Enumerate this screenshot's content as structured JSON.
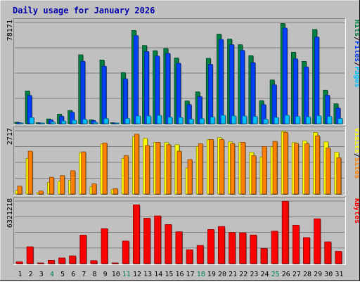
{
  "chart_data": {
    "type": "bar",
    "title": "Daily usage for January 2026",
    "x": [
      "1",
      "2",
      "3",
      "4",
      "5",
      "6",
      "7",
      "8",
      "9",
      "10",
      "11",
      "12",
      "13",
      "14",
      "15",
      "16",
      "17",
      "18",
      "19",
      "20",
      "21",
      "22",
      "23",
      "24",
      "25",
      "26",
      "27",
      "28",
      "29",
      "30",
      "31"
    ],
    "weekend_days": [
      "4",
      "11",
      "18",
      "25"
    ],
    "panels": [
      {
        "id": "top",
        "max_label": "78171",
        "ymax": 78171,
        "legend": [
          {
            "text": "Hits",
            "color": "#008040"
          },
          {
            "text": "/",
            "color": "#000000"
          },
          {
            "text": "Files",
            "color": "#0040ff"
          },
          {
            "text": "/",
            "color": "#000000"
          },
          {
            "text": "Pages",
            "color": "#00c0ff"
          }
        ],
        "series": [
          {
            "name": "Hits",
            "color": "#008040",
            "values": [
              1200,
              25300,
              800,
              3700,
              7400,
              10200,
              53200,
              3000,
              49200,
              800,
              39500,
              72000,
              60400,
              56400,
              58100,
              50800,
              17600,
              24600,
              50500,
              69200,
              65400,
              61000,
              52600,
              17800,
              33800,
              77400,
              55200,
              48100,
              72800,
              25900,
              15400
            ]
          },
          {
            "name": "Files",
            "color": "#0040ff",
            "values": [
              900,
              21800,
              600,
              3000,
              5800,
              8800,
              48200,
              2400,
              44400,
              600,
              34700,
              68000,
              55700,
              52200,
              54300,
              46700,
              14800,
              20900,
              45800,
              65000,
              61000,
              56600,
              47200,
              14700,
              30000,
              73800,
              50100,
              43800,
              66900,
              21900,
              12100
            ]
          },
          {
            "name": "Pages",
            "color": "#00c0ff",
            "values": [
              500,
              4700,
              300,
              1300,
              2100,
              2700,
              3400,
              1000,
              4000,
              400,
              4000,
              6000,
              6000,
              6400,
              5000,
              4800,
              3600,
              3900,
              5100,
              6500,
              6000,
              5900,
              5600,
              3500,
              4900,
              6500,
              5600,
              5300,
              6100,
              5600,
              4000
            ]
          }
        ]
      },
      {
        "id": "mid",
        "max_label": "2717",
        "ymax": 2717,
        "legend": [
          {
            "text": "Visits",
            "color": "#ffff00"
          },
          {
            "text": "/",
            "color": "#000000"
          },
          {
            "text": "Sites",
            "color": "#ff8000"
          }
        ],
        "series": [
          {
            "name": "Visits",
            "color": "#ffff00",
            "values": [
              150,
              1530,
              60,
              500,
              550,
              590,
              1770,
              310,
              2150,
              190,
              1530,
              2470,
              2390,
              2220,
              2210,
              2120,
              1120,
              2040,
              2330,
              2420,
              2240,
              2210,
              1790,
              1590,
              2030,
              2690,
              2210,
              2280,
              2640,
              2240,
              1800
            ]
          },
          {
            "name": "Sites",
            "color": "#ff8000",
            "values": [
              340,
              1840,
              130,
              720,
              790,
              1000,
              1810,
              440,
              2190,
              230,
              1650,
              2570,
              2080,
              2220,
              2120,
              1840,
              1480,
              2160,
              2340,
              2340,
              2170,
              2220,
              1650,
              2040,
              2260,
              2650,
              2170,
              2160,
              2500,
              1980,
              1560
            ]
          }
        ]
      },
      {
        "id": "bot",
        "max_label": "6321218",
        "ymax": 6321218,
        "legend": [
          {
            "text": "KBytes",
            "color": "#ff0000"
          }
        ],
        "series": [
          {
            "name": "KBytes",
            "color": "#ff0000",
            "values": [
              180000,
              1700000,
              70000,
              320000,
              570000,
              780000,
              2880000,
              300000,
              3530000,
              70000,
              2280000,
              5940000,
              4580000,
              4820000,
              3950000,
              3220000,
              1400000,
              1840000,
              3450000,
              3750000,
              3150000,
              3110000,
              2890000,
              1530000,
              3280000,
              6300000,
              3880000,
              2630000,
              4530000,
              2200000,
              1240000
            ]
          }
        ]
      }
    ]
  }
}
